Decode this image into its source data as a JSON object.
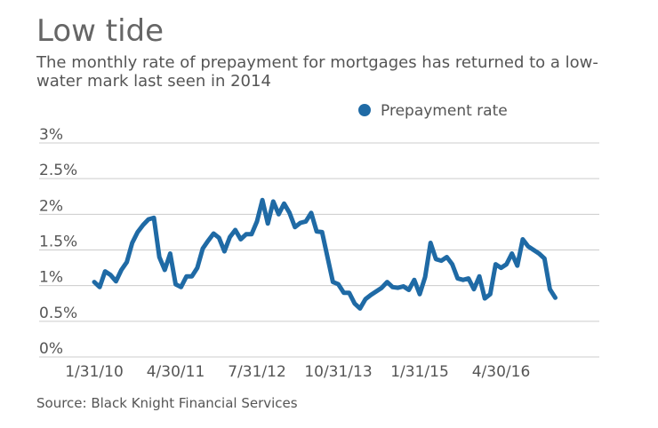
{
  "title": "Low tide",
  "subtitle": "The monthly rate of prepayment for mortgages has returned to a low-water mark last seen in 2014",
  "source": "Source: Black Knight Financial Services",
  "chart_data": {
    "type": "line",
    "title": "Low tide",
    "subtitle": "The monthly rate of prepayment for mortgages has returned to a low-water mark last seen in 2014",
    "xlabel": "",
    "ylabel": "",
    "ylim": [
      0,
      3
    ],
    "yticks": [
      0,
      0.5,
      1,
      1.5,
      2,
      2.5,
      3
    ],
    "ytick_labels": [
      "0%",
      "0.5%",
      "1%",
      "1.5%",
      "2%",
      "2.5%",
      "3%"
    ],
    "xtick_labels": [
      "1/31/10",
      "4/30/11",
      "7/31/12",
      "10/31/13",
      "1/31/15",
      "4/30/16"
    ],
    "xtick_index": [
      0,
      15,
      30,
      45,
      60,
      75
    ],
    "grid": true,
    "legend": "top-right",
    "color": "#1f6aa5",
    "x_start": "2010-01",
    "x_frequency": "monthly",
    "series": [
      {
        "name": "Prepayment rate",
        "values": [
          1.05,
          0.98,
          1.2,
          1.15,
          1.06,
          1.22,
          1.33,
          1.6,
          1.75,
          1.85,
          1.93,
          1.95,
          1.4,
          1.22,
          1.45,
          1.02,
          0.98,
          1.13,
          1.13,
          1.25,
          1.52,
          1.63,
          1.73,
          1.67,
          1.48,
          1.68,
          1.78,
          1.65,
          1.72,
          1.72,
          1.9,
          2.2,
          1.87,
          2.18,
          2.0,
          2.15,
          2.02,
          1.82,
          1.88,
          1.9,
          2.02,
          1.76,
          1.75,
          1.4,
          1.05,
          1.02,
          0.9,
          0.9,
          0.75,
          0.68,
          0.81,
          0.87,
          0.92,
          0.97,
          1.05,
          0.98,
          0.97,
          0.99,
          0.94,
          1.08,
          0.88,
          1.12,
          1.6,
          1.37,
          1.35,
          1.4,
          1.3,
          1.1,
          1.08,
          1.1,
          0.95,
          1.13,
          0.82,
          0.88,
          1.3,
          1.25,
          1.3,
          1.45,
          1.28,
          1.65,
          1.55,
          1.5,
          1.45,
          1.38,
          0.95,
          0.83
        ]
      }
    ]
  }
}
